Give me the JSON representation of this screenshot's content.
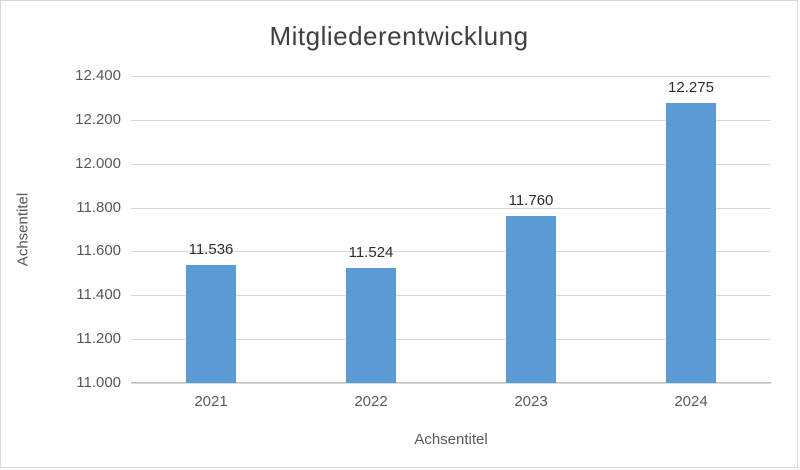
{
  "chart_data": {
    "type": "bar",
    "title": "Mitgliederentwicklung",
    "xlabel": "Achsentitel",
    "ylabel": "Achsentitel",
    "categories": [
      "2021",
      "2022",
      "2023",
      "2024"
    ],
    "values": [
      11536,
      11524,
      11760,
      12275
    ],
    "value_labels": [
      "11.536",
      "11.524",
      "11.760",
      "12.275"
    ],
    "ylim": [
      11000,
      12400
    ],
    "y_tick_step": 200,
    "y_tick_values": [
      11000,
      11200,
      11400,
      11600,
      11800,
      12000,
      12200,
      12400
    ],
    "y_tick_labels": [
      "11.000",
      "11.200",
      "11.400",
      "11.600",
      "11.800",
      "12.000",
      "12.200",
      "12.400"
    ],
    "legend": "none",
    "grid": "horizontal",
    "bar_color": "#5B9BD5",
    "gridline_color": "#d9d9d9",
    "axis_line_color": "#bfbfbf",
    "tick_label_color": "#595959",
    "title_color": "#404040"
  }
}
